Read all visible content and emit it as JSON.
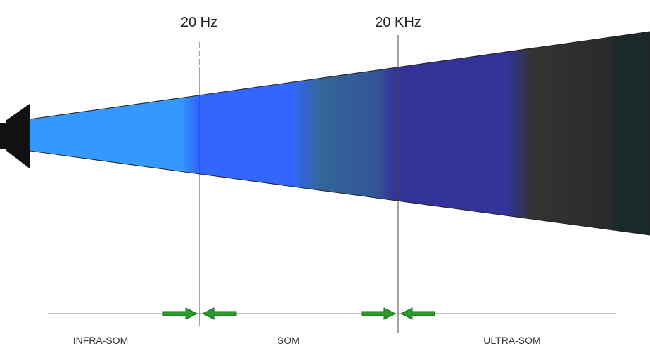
{
  "markers": [
    {
      "label": "20 Hz"
    },
    {
      "label": "20 KHz"
    }
  ],
  "regions": [
    {
      "label": "INFRA-SOM"
    },
    {
      "label": "SOM"
    },
    {
      "label": "ULTRA-SOM"
    }
  ]
}
